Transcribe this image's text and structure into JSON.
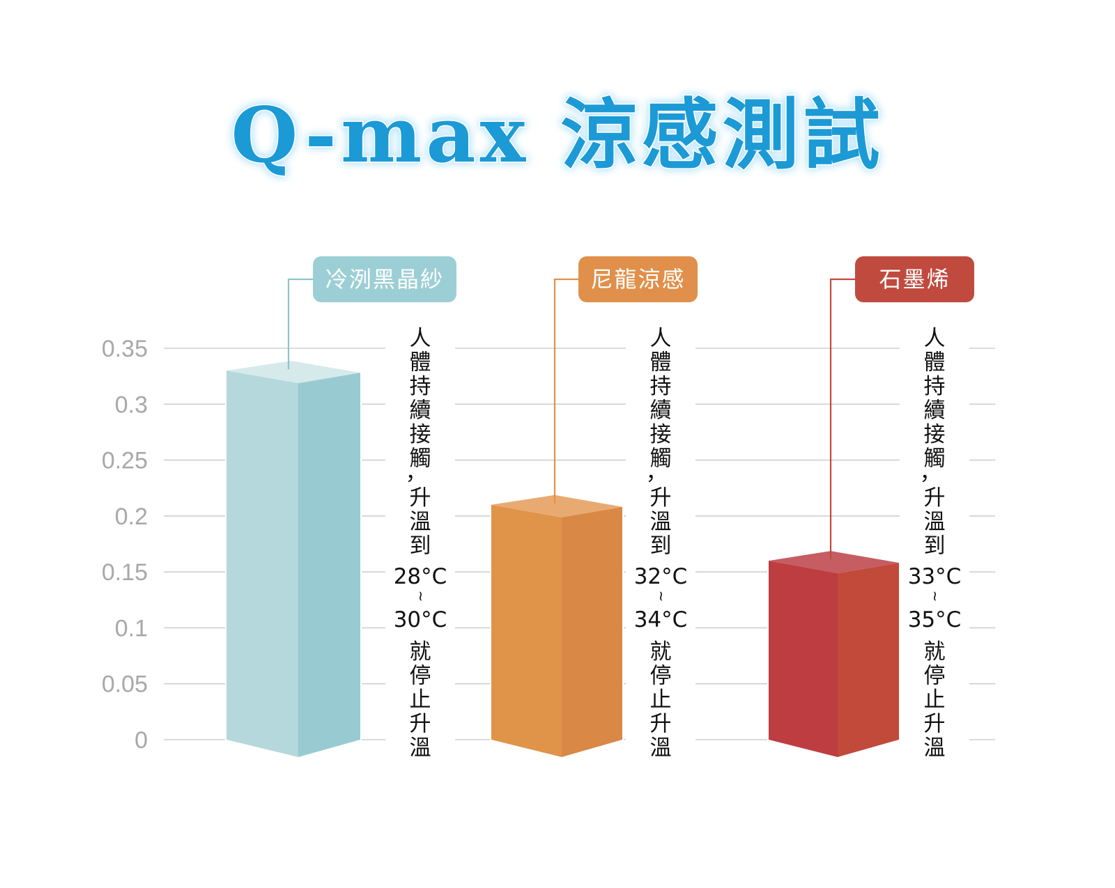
{
  "chart_data": {
    "type": "bar",
    "title": "Q-max 涼感測試",
    "categories": [
      "冷洌黑晶紗",
      "尼龍涼感",
      "石墨烯"
    ],
    "values": [
      0.33,
      0.21,
      0.16
    ],
    "ylim": [
      0,
      0.35
    ],
    "yticks": [
      "0",
      "0.05",
      "0.1",
      "0.15",
      "0.2",
      "0.25",
      "0.3",
      "0.35"
    ],
    "grid": true,
    "colors": {
      "title": "#1a9ad6",
      "grid": "#cfcfcf",
      "tick": "#a8a8a8",
      "bars": [
        {
          "front": "#b4d8dc",
          "side": "#97cbd1",
          "top": "#d6e9eb",
          "label_bg": "#9ccfd5",
          "line": "#8cc5cc"
        },
        {
          "front": "#e0944a",
          "side": "#d98846",
          "top": "#e9aa72",
          "label_bg": "#e0904a",
          "line": "#e0904a"
        },
        {
          "front": "#bd3d40",
          "side": "#c14a3b",
          "top": "#c55d63",
          "label_bg": "#c14a3e",
          "line": "#c14a3e"
        }
      ]
    },
    "annotations": [
      {
        "top": [
          "人",
          "體",
          "持",
          "續",
          "接",
          "觸",
          "，",
          "升",
          "溫",
          "到"
        ],
        "temp_low": "28°C",
        "tilde": "~",
        "temp_high": "30°C",
        "bottom": [
          "就",
          "停",
          "止",
          "升",
          "溫"
        ]
      },
      {
        "top": [
          "人",
          "體",
          "持",
          "續",
          "接",
          "觸",
          "，",
          "升",
          "溫",
          "到"
        ],
        "temp_low": "32°C",
        "tilde": "~",
        "temp_high": "34°C",
        "bottom": [
          "就",
          "停",
          "止",
          "升",
          "溫"
        ]
      },
      {
        "top": [
          "人",
          "體",
          "持",
          "續",
          "接",
          "觸",
          "，",
          "升",
          "溫",
          "到"
        ],
        "temp_low": "33°C",
        "tilde": "~",
        "temp_high": "35°C",
        "bottom": [
          "就",
          "停",
          "止",
          "升",
          "溫"
        ]
      }
    ]
  }
}
